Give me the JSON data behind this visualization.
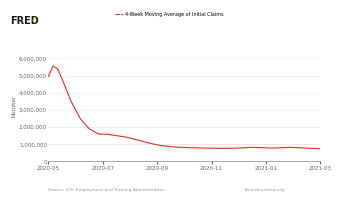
{
  "title": "4-Week Moving Average of Initial Claims",
  "ylabel": "Number",
  "source_left": "Source: U.S. Employment and Training Administration",
  "source_right": "fred.stlouisfed.org",
  "line_color": "#d93025",
  "background_color": "#ffffff",
  "grid_color": "#e0e0e0",
  "ylim": [
    0,
    6500000
  ],
  "yticks": [
    0,
    1000000,
    2000000,
    3000000,
    4000000,
    5000000,
    6000000
  ],
  "xtick_labels": [
    "2020-05",
    "2020-07",
    "2020-09",
    "2020-11",
    "2021-01",
    "2021-03"
  ],
  "fred_logo_color": "#1a1a1a",
  "fred_text": "FRED",
  "x_values": [
    0,
    1,
    2,
    3,
    5,
    7,
    9,
    11,
    13,
    15,
    17,
    19,
    21,
    23,
    25,
    27,
    29,
    31,
    33,
    35,
    37,
    39,
    41,
    43,
    45,
    47,
    49,
    51,
    53,
    55,
    57,
    59,
    60
  ],
  "y_values": [
    4950000,
    5550000,
    5400000,
    4800000,
    3500000,
    2500000,
    1900000,
    1600000,
    1580000,
    1500000,
    1420000,
    1300000,
    1150000,
    1020000,
    920000,
    860000,
    820000,
    800000,
    785000,
    775000,
    765000,
    760000,
    770000,
    790000,
    820000,
    800000,
    780000,
    790000,
    820000,
    800000,
    770000,
    750000,
    740000
  ]
}
